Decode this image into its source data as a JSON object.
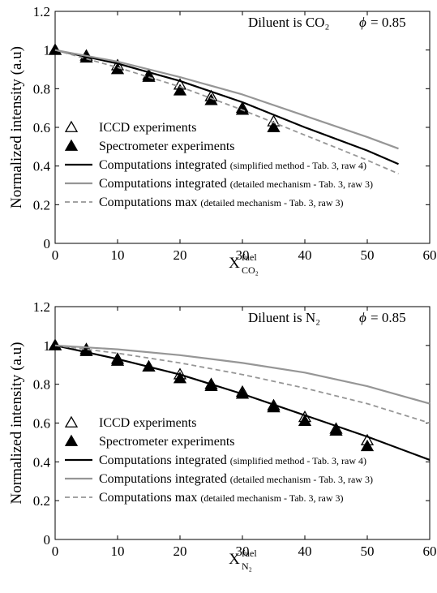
{
  "chart_data": [
    {
      "type": "scatter",
      "xlabel": "X",
      "xlabel_super": "fuel",
      "xlabel_sub": "CO₂",
      "ylabel": "Normalized intensity (a.u)",
      "xlim": [
        0,
        60
      ],
      "ylim": [
        0,
        1.2
      ],
      "xticks": [
        "0",
        "10",
        "20",
        "30",
        "40",
        "50",
        "60"
      ],
      "yticks": [
        "0",
        "0.2",
        "0.4",
        "0.6",
        "0.8",
        "1",
        "1.2"
      ],
      "grid": false,
      "annotations": [
        "Diluent is CO₂",
        "= 0.85"
      ],
      "annotation_symbol": "ϕ",
      "legend_placement": "bottom-left",
      "legend": [
        {
          "main": "ICCD experiments",
          "small": ""
        },
        {
          "main": "Spectrometer experiments",
          "small": ""
        },
        {
          "main": "Computations integrated",
          "small": "(simplified method - Tab. 3, raw 4)"
        },
        {
          "main": "Computations integrated",
          "small": "(detailed mechanism - Tab. 3, raw 3)"
        },
        {
          "main": "Computations max",
          "small": "(detailed mechanism - Tab. 3, raw 3)"
        }
      ],
      "series": [
        {
          "style": "open-triangle",
          "x": [
            0,
            5,
            10,
            15,
            20,
            25,
            30,
            35
          ],
          "y": [
            1.0,
            0.97,
            0.92,
            0.87,
            0.82,
            0.76,
            0.7,
            0.63
          ]
        },
        {
          "style": "filled-triangle",
          "x": [
            0,
            5,
            10,
            15,
            20,
            25,
            30,
            35
          ],
          "y": [
            1.0,
            0.96,
            0.9,
            0.86,
            0.79,
            0.74,
            0.69,
            0.6
          ]
        },
        {
          "style": "black-line",
          "x": [
            0,
            10,
            20,
            30,
            40,
            50,
            55
          ],
          "y": [
            1.0,
            0.93,
            0.84,
            0.73,
            0.6,
            0.48,
            0.41
          ]
        },
        {
          "style": "gray-line",
          "x": [
            0,
            10,
            20,
            30,
            40,
            50,
            55
          ],
          "y": [
            1.0,
            0.94,
            0.86,
            0.77,
            0.66,
            0.55,
            0.49
          ]
        },
        {
          "style": "dashed-line",
          "x": [
            0,
            10,
            20,
            30,
            40,
            50,
            55
          ],
          "y": [
            1.0,
            0.91,
            0.81,
            0.69,
            0.56,
            0.43,
            0.36
          ]
        }
      ]
    },
    {
      "type": "scatter",
      "xlabel": "X",
      "xlabel_super": "fuel",
      "xlabel_sub": "N₂",
      "ylabel": "Normalized intensity (a.u)",
      "xlim": [
        0,
        60
      ],
      "ylim": [
        0,
        1.2
      ],
      "xticks": [
        "0",
        "10",
        "20",
        "30",
        "40",
        "50",
        "60"
      ],
      "yticks": [
        "0",
        "0.2",
        "0.4",
        "0.6",
        "0.8",
        "1",
        "1.2"
      ],
      "grid": false,
      "annotations": [
        "Diluent is N₂",
        "= 0.85"
      ],
      "annotation_symbol": "ϕ",
      "legend_placement": "bottom-left",
      "legend": [
        {
          "main": "ICCD experiments",
          "small": ""
        },
        {
          "main": "Spectrometer experiments",
          "small": ""
        },
        {
          "main": "Computations integrated",
          "small": "(simplified method - Tab. 3, raw 4)"
        },
        {
          "main": "Computations integrated",
          "small": "(detailed mechanism - Tab. 3, raw 3)"
        },
        {
          "main": "Computations max",
          "small": "(detailed mechanism - Tab. 3, raw 3)"
        }
      ],
      "series": [
        {
          "style": "open-triangle",
          "x": [
            0,
            5,
            10,
            15,
            20,
            25,
            30,
            35,
            40,
            45,
            50
          ],
          "y": [
            1.0,
            0.98,
            0.93,
            0.89,
            0.85,
            0.8,
            0.76,
            0.69,
            0.63,
            0.57,
            0.51
          ]
        },
        {
          "style": "filled-triangle",
          "x": [
            0,
            5,
            10,
            15,
            20,
            25,
            30,
            35,
            40,
            45,
            50
          ],
          "y": [
            1.0,
            0.97,
            0.92,
            0.89,
            0.83,
            0.79,
            0.75,
            0.68,
            0.61,
            0.56,
            0.48
          ]
        },
        {
          "style": "black-line",
          "x": [
            0,
            10,
            20,
            30,
            40,
            50,
            60
          ],
          "y": [
            1.0,
            0.93,
            0.85,
            0.75,
            0.64,
            0.53,
            0.41
          ]
        },
        {
          "style": "gray-line",
          "x": [
            0,
            10,
            20,
            30,
            40,
            50,
            60
          ],
          "y": [
            1.0,
            0.98,
            0.95,
            0.91,
            0.86,
            0.79,
            0.7
          ]
        },
        {
          "style": "dashed-line",
          "x": [
            0,
            10,
            20,
            30,
            40,
            50,
            60
          ],
          "y": [
            1.0,
            0.96,
            0.91,
            0.85,
            0.78,
            0.7,
            0.6
          ]
        }
      ]
    }
  ]
}
